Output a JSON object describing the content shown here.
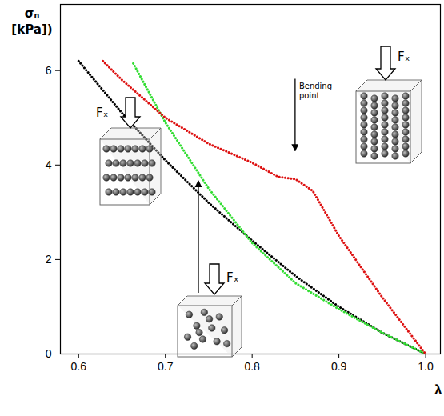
{
  "chart_data": {
    "type": "line",
    "xlabel": "λ",
    "ylabel": "σₙ [kPa])",
    "xlim": [
      0.579,
      1.017
    ],
    "ylim": [
      0,
      7.4
    ],
    "xticks": [
      0.6,
      0.7,
      0.8,
      0.9,
      {
        "value": 1,
        "label": "1.0"
      }
    ],
    "yticks": [
      0,
      2,
      4,
      6
    ],
    "grid": false,
    "line_style": "dotted",
    "series": [
      {
        "color": "#000000",
        "x": [
          0.6,
          0.65,
          0.7,
          0.75,
          0.8,
          0.85,
          0.9,
          0.95,
          1.0
        ],
        "values": [
          6.2,
          5.1,
          4.1,
          3.2,
          2.4,
          1.65,
          1.0,
          0.45,
          0
        ]
      },
      {
        "color": "#33dd33",
        "x": [
          0.663,
          0.7,
          0.75,
          0.8,
          0.85,
          0.9,
          0.95,
          1.0
        ],
        "values": [
          6.15,
          4.9,
          3.5,
          2.35,
          1.5,
          0.95,
          0.45,
          0
        ]
      },
      {
        "color": "#dd1111",
        "x": [
          0.628,
          0.65,
          0.7,
          0.75,
          0.8,
          0.83,
          0.85,
          0.87,
          0.9,
          0.95,
          1.0
        ],
        "values": [
          6.2,
          5.8,
          5.0,
          4.45,
          4.05,
          3.75,
          3.7,
          3.45,
          2.5,
          1.2,
          0
        ]
      }
    ],
    "annotations": [
      {
        "text": "Bending point",
        "x": 0.85,
        "y": 3.7
      },
      {
        "text": "Fₓ"
      },
      {
        "text": "Fₓ"
      },
      {
        "text": "Fₓ"
      }
    ]
  }
}
